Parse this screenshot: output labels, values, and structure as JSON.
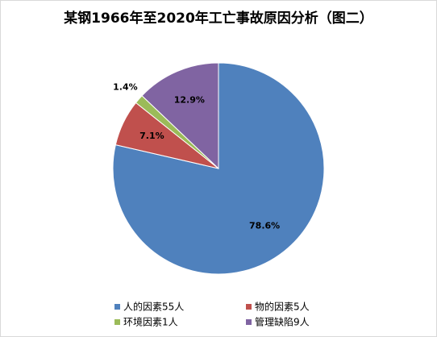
{
  "chart_data": {
    "type": "pie",
    "title": "某钢1966年至2020年工亡事故原因分析（图二）",
    "categories": [
      "人的因素55人",
      "物的因素5人",
      "环境因素1人",
      "管理缺陷9人"
    ],
    "values": [
      78.6,
      7.1,
      1.4,
      12.9
    ],
    "value_labels": [
      "78.6%",
      "7.1%",
      "1.4%",
      "12.9%"
    ],
    "colors": [
      "#4f81bd",
      "#c0504d",
      "#9bbb59",
      "#8064a2"
    ],
    "legend": "bottom"
  }
}
